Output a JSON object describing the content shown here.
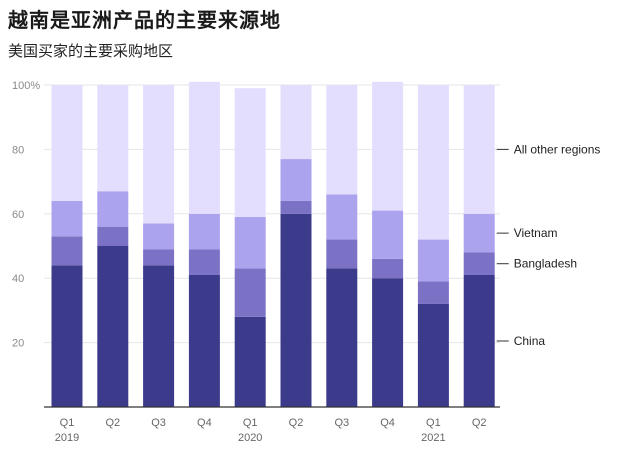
{
  "title": "越南是亚洲产品的主要来源地",
  "subtitle": "美国买家的主要采购地区",
  "chart_data": {
    "type": "bar",
    "stacked": true,
    "categories": [
      "Q1",
      "Q2",
      "Q3",
      "Q4",
      "Q1",
      "Q2",
      "Q3",
      "Q4",
      "Q1",
      "Q2"
    ],
    "year_labels": [
      {
        "category_index": 0,
        "label": "2019"
      },
      {
        "category_index": 4,
        "label": "2020"
      },
      {
        "category_index": 8,
        "label": "2021"
      }
    ],
    "ylim": [
      0,
      100
    ],
    "y_ticks": [
      {
        "value": 20,
        "label": "20"
      },
      {
        "value": 40,
        "label": "40"
      },
      {
        "value": 60,
        "label": "60"
      },
      {
        "value": 80,
        "label": "80"
      },
      {
        "value": 100,
        "label": "100%"
      }
    ],
    "grid": true,
    "legend_placement": "right, next to last bar",
    "series": [
      {
        "name": "China",
        "color": "#3c3a8a",
        "values": [
          44,
          50,
          44,
          41,
          28,
          60,
          43,
          40,
          32,
          41
        ]
      },
      {
        "name": "Bangladesh",
        "color": "#7b72c6",
        "values": [
          9,
          6,
          5,
          8,
          15,
          4,
          9,
          6,
          7,
          7
        ]
      },
      {
        "name": "Vietnam",
        "color": "#aba3ee",
        "values": [
          11,
          11,
          8,
          11,
          16,
          13,
          14,
          15,
          13,
          12
        ]
      },
      {
        "name": "All other regions",
        "color": "#e4defe",
        "values": [
          36,
          33,
          43,
          41,
          40,
          23,
          34,
          40,
          48,
          40
        ]
      }
    ]
  }
}
